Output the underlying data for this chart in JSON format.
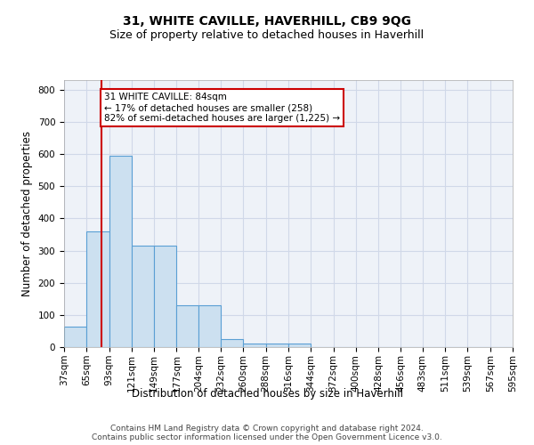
{
  "title": "31, WHITE CAVILLE, HAVERHILL, CB9 9QG",
  "subtitle": "Size of property relative to detached houses in Haverhill",
  "xlabel": "Distribution of detached houses by size in Haverhill",
  "ylabel": "Number of detached properties",
  "bin_edges": [
    37,
    65,
    93,
    121,
    149,
    177,
    204,
    232,
    260,
    288,
    316,
    344,
    372,
    400,
    428,
    456,
    483,
    511,
    539,
    567,
    595
  ],
  "bar_heights": [
    65,
    360,
    595,
    315,
    315,
    130,
    130,
    25,
    10,
    10,
    10,
    0,
    0,
    0,
    0,
    0,
    0,
    0,
    0,
    0
  ],
  "bar_color": "#cce0f0",
  "bar_edge_color": "#5a9fd4",
  "grid_color": "#d0d8e8",
  "background_color": "#eef2f8",
  "property_size": 84,
  "property_line_color": "#cc0000",
  "annotation_text": "31 WHITE CAVILLE: 84sqm\n← 17% of detached houses are smaller (258)\n82% of semi-detached houses are larger (1,225) →",
  "annotation_box_color": "#cc0000",
  "ylim": [
    0,
    830
  ],
  "yticks": [
    0,
    100,
    200,
    300,
    400,
    500,
    600,
    700,
    800
  ],
  "footer_line1": "Contains HM Land Registry data © Crown copyright and database right 2024.",
  "footer_line2": "Contains public sector information licensed under the Open Government Licence v3.0.",
  "title_fontsize": 10,
  "subtitle_fontsize": 9,
  "axis_label_fontsize": 8.5,
  "tick_fontsize": 7.5,
  "annotation_fontsize": 7.5,
  "footer_fontsize": 6.5
}
